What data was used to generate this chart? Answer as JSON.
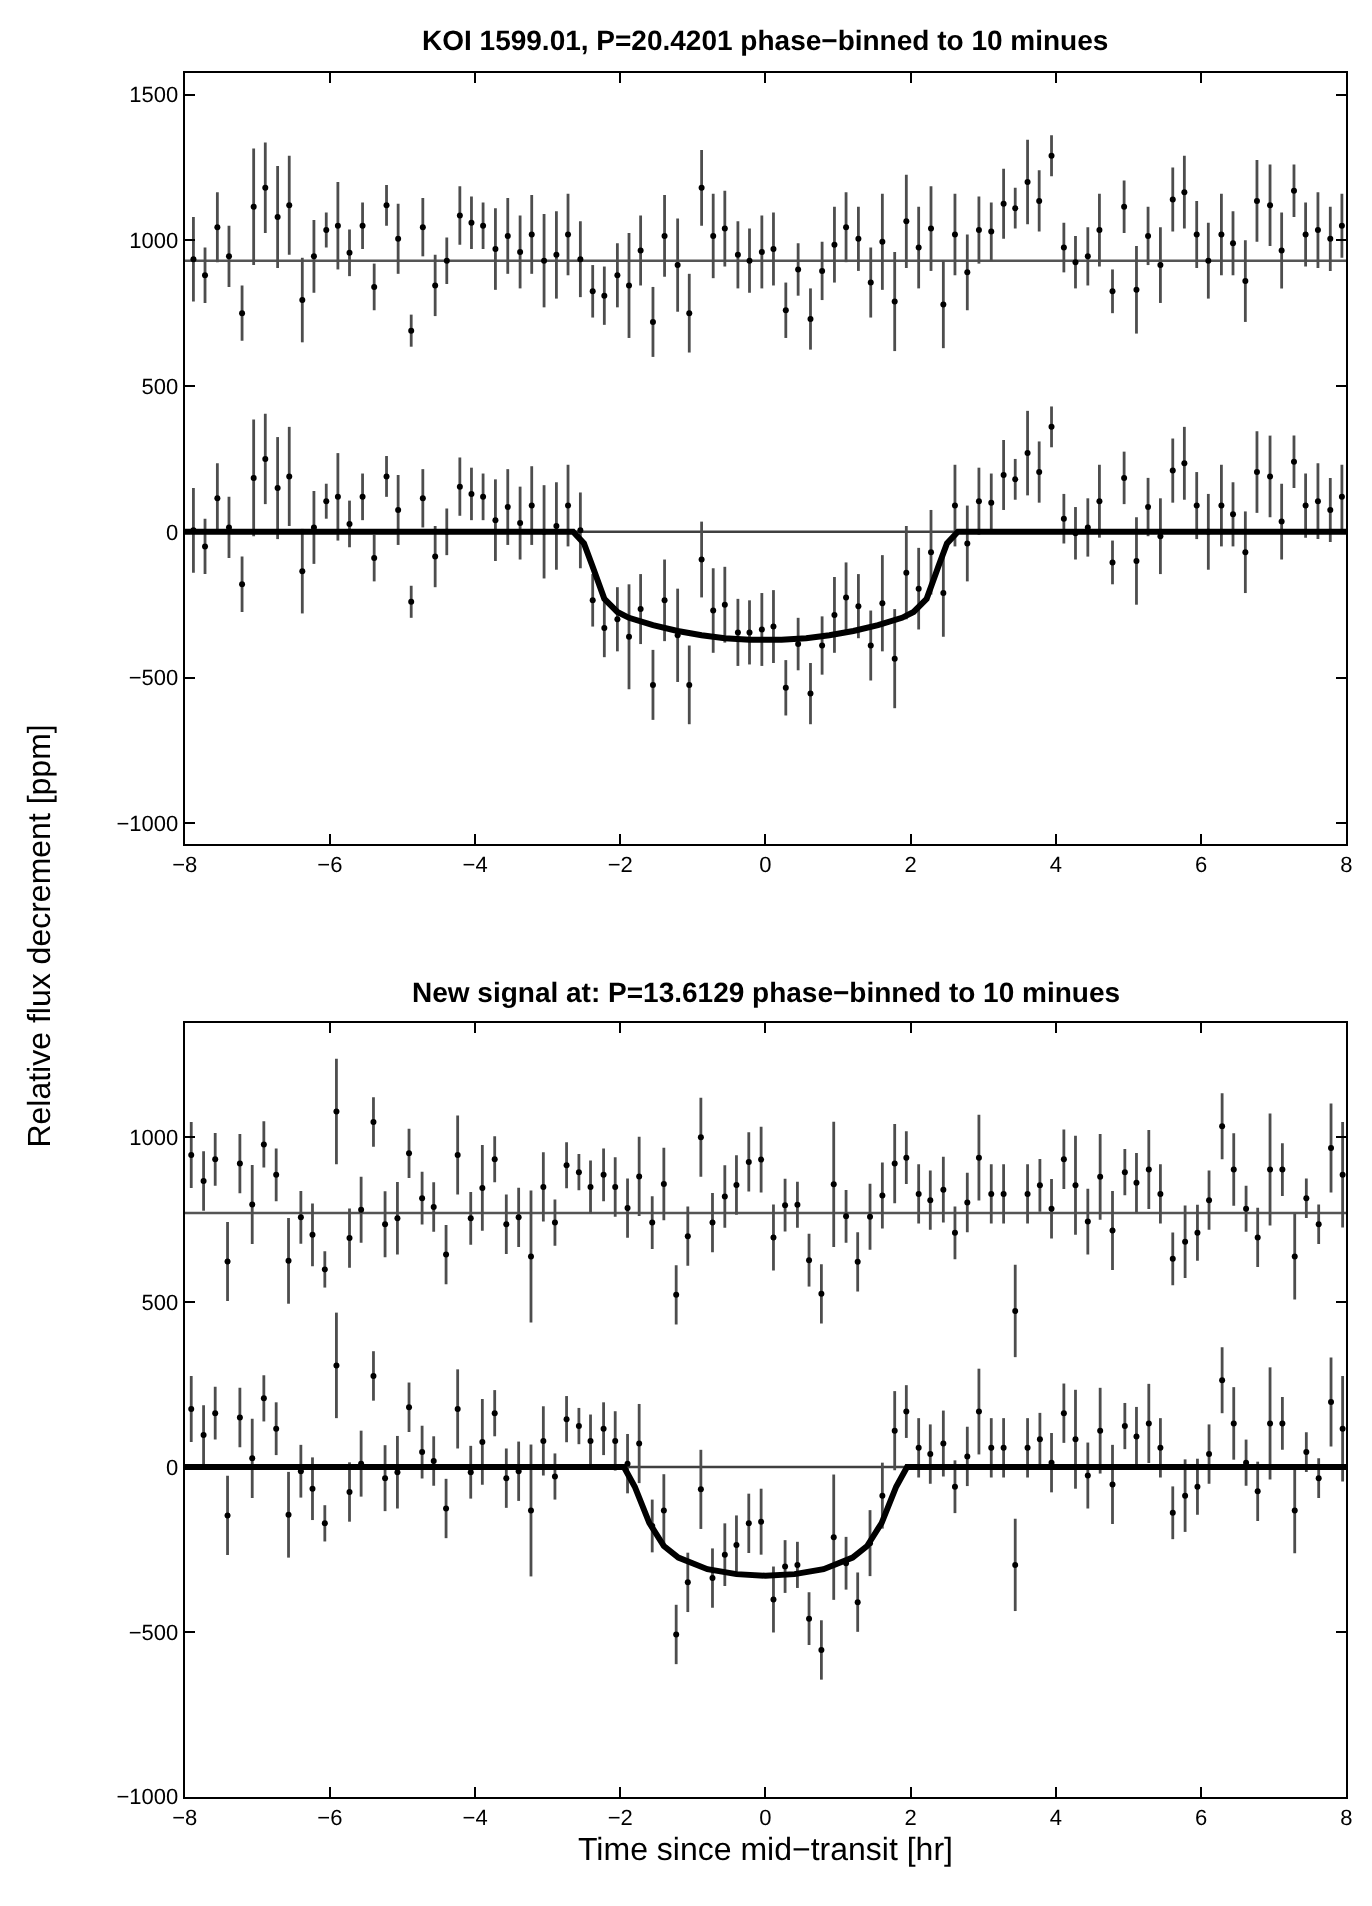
{
  "chart_data": [
    {
      "type": "scatter",
      "title": "KOI 1599.01, P=20.4201 phase−binned to 10 minues",
      "ylabel": "Relative flux decrement [ppm]",
      "xlim": [
        -8,
        8
      ],
      "xticks": [
        -8,
        -6,
        -4,
        -2,
        0,
        2,
        4,
        6,
        8
      ],
      "ylim": [
        -1070,
        1575
      ],
      "yticks": [
        -1000,
        -500,
        0,
        500,
        1000,
        1500
      ],
      "grid": false,
      "marker": "circle",
      "ref_lines": [
        {
          "axis": "y",
          "value": 0,
          "color": "#404040"
        },
        {
          "axis": "y",
          "value": 930,
          "color": "#555555"
        }
      ],
      "series": [
        {
          "color": "#000000",
          "x": [
            -7.88,
            -7.72,
            -7.55,
            -7.39,
            -7.21,
            -7.05,
            -6.89,
            -6.72,
            -6.56,
            -6.38,
            -6.22,
            -6.05,
            -5.89,
            -5.73,
            -5.55,
            -5.39,
            -5.22,
            -5.06,
            -4.88,
            -4.72,
            -4.55,
            -4.39,
            -4.21,
            -4.05,
            -3.89,
            -3.72,
            -3.55,
            -3.38,
            -3.22,
            -3.05,
            -2.88,
            -2.72,
            -2.55,
            -2.38,
            -2.22,
            -2.04,
            -1.88,
            -1.72,
            -1.55,
            -1.39,
            -1.21,
            -1.05,
            -0.88,
            -0.72,
            -0.56,
            -0.38,
            -0.22,
            -0.05,
            0.11,
            0.28,
            0.45,
            0.62,
            0.78,
            0.95,
            1.11,
            1.28,
            1.45,
            1.61,
            1.78,
            1.94,
            2.11,
            2.28,
            2.45,
            2.61,
            2.78,
            2.94,
            3.11,
            3.28,
            3.44,
            3.61,
            3.77,
            3.94,
            4.11,
            4.27,
            4.44,
            4.6,
            4.78,
            4.94,
            5.11,
            5.27,
            5.44,
            5.61,
            5.77,
            5.94,
            6.1,
            6.28,
            6.44,
            6.61,
            6.77,
            6.95,
            7.11,
            7.28,
            7.44,
            7.61,
            7.78,
            7.94
          ],
          "values": [
            935,
            880,
            1045,
            945,
            750,
            1115,
            1180,
            1080,
            1120,
            795,
            945,
            1035,
            1050,
            957,
            1050,
            840,
            1120,
            1005,
            690,
            1045,
            845,
            930,
            1085,
            1060,
            1050,
            970,
            1015,
            960,
            1020,
            930,
            950,
            1020,
            935,
            825,
            810,
            880,
            845,
            965,
            720,
            1015,
            915,
            750,
            1180,
            1015,
            1040,
            950,
            930,
            960,
            970,
            760,
            900,
            730,
            895,
            985,
            1045,
            1005,
            855,
            995,
            790,
            1065,
            975,
            1040,
            780,
            1020,
            890,
            1035,
            1030,
            1125,
            1110,
            1200,
            1135,
            1290,
            975,
            925,
            945,
            1035,
            825,
            1115,
            830,
            1015,
            915,
            1140,
            1165,
            1020,
            930,
            1020,
            990,
            860,
            1135,
            1120,
            965,
            1170,
            1020,
            1035,
            1005,
            1050
          ],
          "errors": [
            145,
            95,
            120,
            105,
            95,
            200,
            155,
            175,
            170,
            145,
            125,
            60,
            150,
            80,
            80,
            80,
            70,
            120,
            55,
            100,
            105,
            80,
            100,
            90,
            80,
            140,
            130,
            125,
            135,
            160,
            150,
            140,
            130,
            90,
            100,
            110,
            180,
            120,
            120,
            140,
            160,
            135,
            130,
            145,
            130,
            115,
            110,
            125,
            125,
            95,
            90,
            105,
            100,
            130,
            120,
            110,
            120,
            165,
            170,
            160,
            140,
            145,
            150,
            140,
            130,
            115,
            100,
            120,
            70,
            145,
            105,
            70,
            85,
            90,
            100,
            125,
            75,
            90,
            150,
            100,
            130,
            110,
            125,
            115,
            130,
            140,
            110,
            140,
            140,
            140,
            130,
            90,
            110,
            130,
            110,
            110
          ]
        },
        {
          "color": "#000000",
          "x": [
            -7.88,
            -7.72,
            -7.55,
            -7.39,
            -7.21,
            -7.05,
            -6.89,
            -6.72,
            -6.56,
            -6.38,
            -6.22,
            -6.05,
            -5.89,
            -5.73,
            -5.55,
            -5.39,
            -5.22,
            -5.06,
            -4.88,
            -4.72,
            -4.55,
            -4.39,
            -4.21,
            -4.05,
            -3.89,
            -3.72,
            -3.55,
            -3.38,
            -3.22,
            -3.05,
            -2.88,
            -2.72,
            -2.55,
            -2.38,
            -2.22,
            -2.04,
            -1.88,
            -1.72,
            -1.55,
            -1.39,
            -1.21,
            -1.05,
            -0.88,
            -0.72,
            -0.56,
            -0.38,
            -0.22,
            -0.05,
            0.11,
            0.28,
            0.45,
            0.62,
            0.78,
            0.95,
            1.11,
            1.28,
            1.45,
            1.61,
            1.78,
            1.94,
            2.11,
            2.28,
            2.45,
            2.61,
            2.78,
            2.94,
            3.11,
            3.28,
            3.44,
            3.61,
            3.77,
            3.94,
            4.11,
            4.27,
            4.44,
            4.6,
            4.78,
            4.94,
            5.11,
            5.27,
            5.44,
            5.61,
            5.77,
            5.94,
            6.1,
            6.28,
            6.44,
            6.61,
            6.77,
            6.95,
            7.11,
            7.28,
            7.44,
            7.61,
            7.78,
            7.94
          ],
          "values": [
            5,
            -50,
            115,
            15,
            -180,
            185,
            250,
            150,
            190,
            -135,
            15,
            105,
            120,
            27,
            120,
            -90,
            190,
            75,
            -240,
            115,
            -85,
            0,
            155,
            130,
            120,
            40,
            85,
            30,
            90,
            0,
            20,
            90,
            5,
            -235,
            -330,
            -300,
            -360,
            -265,
            -525,
            -235,
            -355,
            -525,
            -95,
            -270,
            -250,
            -345,
            -345,
            -335,
            -325,
            -535,
            -385,
            -555,
            -390,
            -285,
            -225,
            -255,
            -390,
            -245,
            -435,
            -140,
            -195,
            -70,
            -210,
            90,
            -40,
            105,
            100,
            195,
            180,
            270,
            205,
            360,
            45,
            -5,
            15,
            105,
            -105,
            185,
            -100,
            85,
            -15,
            210,
            235,
            90,
            0,
            90,
            60,
            -70,
            205,
            190,
            35,
            240,
            90,
            105,
            75,
            120
          ],
          "errors": [
            145,
            95,
            120,
            105,
            95,
            200,
            155,
            175,
            170,
            145,
            125,
            60,
            150,
            80,
            80,
            80,
            70,
            120,
            55,
            100,
            105,
            80,
            100,
            90,
            80,
            140,
            130,
            125,
            135,
            160,
            150,
            140,
            130,
            90,
            100,
            110,
            180,
            120,
            120,
            140,
            160,
            135,
            130,
            145,
            130,
            115,
            110,
            125,
            125,
            95,
            90,
            105,
            100,
            130,
            120,
            110,
            120,
            165,
            170,
            160,
            140,
            145,
            150,
            140,
            130,
            115,
            100,
            120,
            70,
            145,
            105,
            70,
            85,
            90,
            100,
            125,
            75,
            90,
            150,
            100,
            130,
            110,
            125,
            115,
            130,
            140,
            110,
            140,
            140,
            140,
            130,
            90,
            110,
            130,
            110,
            110
          ]
        },
        {
          "type": "line",
          "marker": "none",
          "color": "#000000",
          "x": [
            -8,
            -2.65,
            -2.5,
            -2.38,
            -2.22,
            -2.04,
            -1.88,
            -1.55,
            -1.21,
            -0.88,
            -0.56,
            -0.22,
            0,
            0.22,
            0.56,
            0.88,
            1.21,
            1.55,
            1.88,
            2.04,
            2.22,
            2.38,
            2.5,
            2.65,
            8
          ],
          "values": [
            0,
            0,
            -40,
            -120,
            -230,
            -275,
            -295,
            -320,
            -340,
            -355,
            -365,
            -370,
            -370,
            -370,
            -365,
            -355,
            -340,
            -320,
            -295,
            -275,
            -230,
            -120,
            -40,
            0,
            0
          ]
        }
      ]
    },
    {
      "type": "scatter",
      "title": "New signal at: P=13.6129 phase−binned to 10 minues",
      "xlabel": "Time since mid−transit [hr]",
      "xlim": [
        -8,
        8
      ],
      "xticks": [
        -8,
        -6,
        -4,
        -2,
        0,
        2,
        4,
        6,
        8
      ],
      "ylim": [
        -1000,
        1345
      ],
      "yticks": [
        -1000,
        -500,
        0,
        500,
        1000
      ],
      "grid": false,
      "marker": "circle",
      "ref_lines": [
        {
          "axis": "y",
          "value": 0,
          "color": "#404040"
        },
        {
          "axis": "y",
          "value": 770,
          "color": "#555555"
        }
      ],
      "series": [
        {
          "color": "#000000",
          "x": [
            -7.91,
            -7.74,
            -7.58,
            -7.41,
            -7.24,
            -7.07,
            -6.91,
            -6.74,
            -6.57,
            -6.4,
            -6.24,
            -6.07,
            -5.91,
            -5.73,
            -5.57,
            -5.4,
            -5.24,
            -5.07,
            -4.91,
            -4.73,
            -4.57,
            -4.4,
            -4.24,
            -4.06,
            -3.9,
            -3.73,
            -3.57,
            -3.4,
            -3.23,
            -3.06,
            -2.9,
            -2.74,
            -2.57,
            -2.41,
            -2.23,
            -2.07,
            -1.9,
            -1.74,
            -1.56,
            -1.4,
            -1.23,
            -1.07,
            -0.89,
            -0.73,
            -0.56,
            -0.4,
            -0.23,
            -0.06,
            0.11,
            0.27,
            0.44,
            0.6,
            0.77,
            0.94,
            1.11,
            1.27,
            1.44,
            1.61,
            1.78,
            1.94,
            2.11,
            2.27,
            2.45,
            2.61,
            2.78,
            2.94,
            3.11,
            3.28,
            3.44,
            3.61,
            3.78,
            3.94,
            4.11,
            4.27,
            4.44,
            4.61,
            4.78,
            4.95,
            5.11,
            5.28,
            5.44,
            5.61,
            5.78,
            5.95,
            6.11,
            6.29,
            6.45,
            6.62,
            6.78,
            6.95,
            7.12,
            7.29,
            7.45,
            7.62,
            7.79,
            7.95
          ],
          "values": [
            946,
            867,
            933,
            623,
            920,
            796,
            978,
            886,
            625,
            757,
            704,
            599,
            1078,
            694,
            780,
            1046,
            736,
            754,
            951,
            815,
            788,
            644,
            946,
            754,
            846,
            933,
            736,
            757,
            638,
            849,
            741,
            915,
            894,
            849,
            886,
            849,
            785,
            881,
            741,
            858,
            522,
            700,
            1000,
            741,
            820,
            855,
            925,
            932,
            696,
            794,
            795,
            627,
            525,
            857,
            760,
            622,
            759,
            823,
            920,
            938,
            828,
            809,
            841,
            710,
            802,
            938,
            828,
            828,
            473,
            828,
            854,
            783,
            933,
            854,
            744,
            880,
            717,
            894,
            862,
            902,
            828,
            631,
            683,
            710,
            809,
            1033,
            902,
            783,
            696,
            902,
            902,
            638,
            815,
            736,
            967,
            886
          ],
          "errors": [
            100,
            90,
            80,
            120,
            90,
            120,
            70,
            80,
            130,
            80,
            95,
            55,
            160,
            90,
            100,
            75,
            100,
            110,
            75,
            80,
            75,
            90,
            120,
            80,
            130,
            70,
            90,
            90,
            200,
            105,
            70,
            70,
            55,
            80,
            80,
            90,
            90,
            120,
            80,
            110,
            90,
            90,
            120,
            90,
            95,
            90,
            90,
            100,
            100,
            80,
            70,
            80,
            90,
            190,
            80,
            90,
            100,
            100,
            120,
            80,
            90,
            90,
            100,
            80,
            90,
            130,
            90,
            90,
            140,
            90,
            80,
            90,
            90,
            150,
            100,
            130,
            120,
            70,
            90,
            120,
            90,
            80,
            110,
            85,
            90,
            100,
            110,
            70,
            90,
            170,
            80,
            130,
            60,
            60,
            135,
            160
          ]
        },
        {
          "color": "#000000",
          "x": [
            -7.91,
            -7.74,
            -7.58,
            -7.41,
            -7.24,
            -7.07,
            -6.91,
            -6.74,
            -6.57,
            -6.4,
            -6.24,
            -6.07,
            -5.91,
            -5.73,
            -5.57,
            -5.4,
            -5.24,
            -5.07,
            -4.91,
            -4.73,
            -4.57,
            -4.4,
            -4.24,
            -4.06,
            -3.9,
            -3.73,
            -3.57,
            -3.4,
            -3.23,
            -3.06,
            -2.9,
            -2.74,
            -2.57,
            -2.41,
            -2.23,
            -2.07,
            -1.9,
            -1.74,
            -1.56,
            -1.4,
            -1.23,
            -1.07,
            -0.89,
            -0.73,
            -0.56,
            -0.4,
            -0.23,
            -0.06,
            0.11,
            0.27,
            0.44,
            0.6,
            0.77,
            0.94,
            1.11,
            1.27,
            1.44,
            1.61,
            1.78,
            1.94,
            2.11,
            2.27,
            2.45,
            2.61,
            2.78,
            2.94,
            3.11,
            3.28,
            3.44,
            3.61,
            3.78,
            3.94,
            4.11,
            4.27,
            4.44,
            4.61,
            4.78,
            4.95,
            5.11,
            5.28,
            5.44,
            5.61,
            5.78,
            5.95,
            6.11,
            6.29,
            6.45,
            6.62,
            6.78,
            6.95,
            7.12,
            7.29,
            7.45,
            7.62,
            7.79,
            7.95
          ],
          "values": [
            176,
            97,
            163,
            -147,
            150,
            26,
            208,
            116,
            -145,
            -13,
            -66,
            -171,
            308,
            -76,
            10,
            276,
            -34,
            -16,
            181,
            45,
            18,
            -126,
            176,
            -16,
            76,
            163,
            -34,
            -13,
            -132,
            79,
            -29,
            145,
            124,
            79,
            116,
            79,
            10,
            71,
            -179,
            -132,
            -508,
            -350,
            -68,
            -337,
            -266,
            -237,
            -171,
            -166,
            -402,
            -302,
            -297,
            -460,
            -555,
            -213,
            -292,
            -410,
            -231,
            -87,
            110,
            168,
            58,
            39,
            71,
            -60,
            32,
            168,
            58,
            58,
            -297,
            58,
            84,
            13,
            163,
            84,
            -26,
            110,
            -53,
            124,
            92,
            132,
            58,
            -139,
            -87,
            -60,
            39,
            263,
            132,
            13,
            -74,
            132,
            132,
            -132,
            45,
            -34,
            197,
            116
          ],
          "errors": [
            100,
            90,
            80,
            120,
            90,
            120,
            70,
            80,
            130,
            80,
            95,
            55,
            160,
            90,
            100,
            75,
            100,
            110,
            75,
            80,
            75,
            90,
            120,
            80,
            130,
            70,
            90,
            90,
            200,
            105,
            70,
            70,
            55,
            80,
            80,
            90,
            90,
            120,
            80,
            110,
            90,
            90,
            120,
            90,
            95,
            90,
            90,
            100,
            100,
            80,
            70,
            80,
            90,
            190,
            80,
            90,
            100,
            100,
            120,
            80,
            90,
            90,
            100,
            80,
            90,
            130,
            90,
            90,
            140,
            90,
            80,
            90,
            90,
            150,
            100,
            130,
            120,
            70,
            90,
            120,
            90,
            80,
            110,
            85,
            90,
            100,
            110,
            70,
            90,
            170,
            80,
            130,
            60,
            60,
            135,
            160
          ]
        },
        {
          "type": "line",
          "marker": "none",
          "color": "#000000",
          "x": [
            -8,
            -1.95,
            -1.8,
            -1.6,
            -1.4,
            -1.2,
            -0.8,
            -0.4,
            0,
            0.4,
            0.8,
            1.2,
            1.4,
            1.6,
            1.8,
            1.95,
            8
          ],
          "values": [
            0,
            0,
            -60,
            -170,
            -240,
            -275,
            -310,
            -325,
            -330,
            -325,
            -310,
            -275,
            -240,
            -170,
            -60,
            0,
            0
          ]
        }
      ]
    }
  ]
}
